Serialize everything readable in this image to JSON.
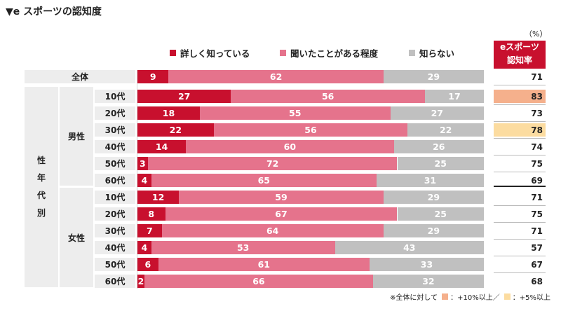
{
  "title": "▼e スポーツの認知度",
  "unit": "（%）",
  "rate_header": [
    "eスポーツ",
    "認知率"
  ],
  "colors": {
    "detailed": "#c8102e",
    "heard": "#e5738c",
    "unknown": "#c0c0c0",
    "highlight_10": "#f5b08c",
    "highlight_5": "#fcdca0"
  },
  "side_labels": {
    "demographic": [
      "性",
      "年",
      "代",
      "別"
    ],
    "male": "男性",
    "female": "女性"
  },
  "footnote": {
    "prefix": "※全体に対して",
    "high10": "：+10%以上／",
    "high5": "：+5%以上"
  },
  "chart_data": {
    "type": "bar",
    "orientation": "horizontal",
    "stacked": true,
    "xlim": [
      0,
      100
    ],
    "legend_position": "top",
    "categories": [
      "全体",
      "男性 10代",
      "男性 20代",
      "男性 30代",
      "男性 40代",
      "男性 50代",
      "男性 60代",
      "女性 10代",
      "女性 20代",
      "女性 30代",
      "女性 40代",
      "女性 50代",
      "女性 60代"
    ],
    "row_labels": [
      "全体",
      "10代",
      "20代",
      "30代",
      "40代",
      "50代",
      "60代",
      "10代",
      "20代",
      "30代",
      "40代",
      "50代",
      "60代"
    ],
    "series": [
      {
        "name": "詳しく知っている",
        "values": [
          9,
          27,
          18,
          22,
          14,
          3,
          4,
          12,
          8,
          7,
          4,
          6,
          2
        ]
      },
      {
        "name": "聞いたことがある程度",
        "values": [
          62,
          56,
          55,
          56,
          60,
          72,
          65,
          59,
          67,
          64,
          53,
          61,
          66
        ]
      },
      {
        "name": "知らない",
        "values": [
          29,
          17,
          27,
          22,
          26,
          25,
          31,
          29,
          25,
          29,
          43,
          33,
          32
        ]
      }
    ],
    "awareness_rate": [
      71,
      83,
      73,
      78,
      74,
      75,
      69,
      71,
      75,
      71,
      57,
      67,
      68
    ],
    "rate_highlight": [
      null,
      "+10",
      null,
      "+5",
      null,
      null,
      null,
      null,
      null,
      null,
      null,
      null,
      null
    ]
  }
}
